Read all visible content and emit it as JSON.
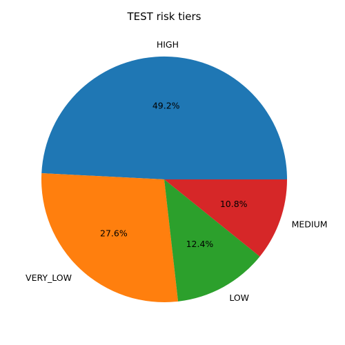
{
  "chart_data": {
    "type": "pie",
    "title": "TEST risk tiers",
    "start_angle_deg": 0,
    "direction": "counterclockwise",
    "slices": [
      {
        "label": "HIGH",
        "value": 49.2,
        "pct_label": "49.2%",
        "color": "#1f77b4"
      },
      {
        "label": "VERY_LOW",
        "value": 27.6,
        "pct_label": "27.6%",
        "color": "#ff7f0e"
      },
      {
        "label": "LOW",
        "value": 12.4,
        "pct_label": "12.4%",
        "color": "#2ca02c"
      },
      {
        "label": "MEDIUM",
        "value": 10.8,
        "pct_label": "10.8%",
        "color": "#d62728"
      }
    ]
  }
}
